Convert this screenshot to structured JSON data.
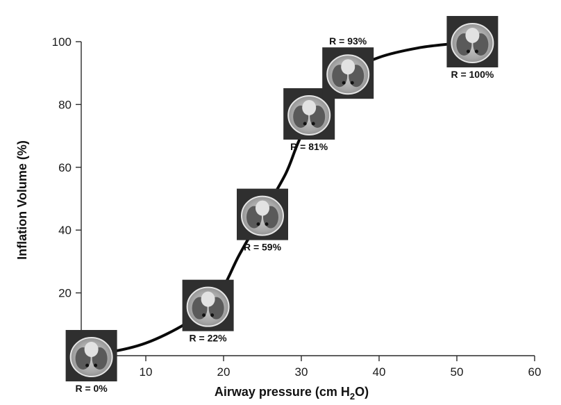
{
  "chart_data": {
    "type": "line",
    "title": "",
    "xlabel_main": "Airway pressure (cm H",
    "xlabel_sub": "2",
    "xlabel_tail": "O)",
    "ylabel": "Inflation Volume (%)",
    "xlim": [
      0,
      60
    ],
    "ylim": [
      0,
      100
    ],
    "x_ticks": [
      10,
      20,
      30,
      40,
      50,
      60
    ],
    "y_ticks": [
      20,
      40,
      60,
      80,
      100
    ],
    "grid": false,
    "series": [
      {
        "x": [
          0,
          5,
          10,
          15,
          18,
          20,
          22,
          25,
          28,
          30,
          33,
          36,
          40,
          45,
          50,
          52
        ],
        "y": [
          0,
          1,
          4,
          10,
          16,
          22,
          32,
          45,
          58,
          70,
          81,
          90,
          95,
          98,
          99.5,
          100
        ]
      }
    ],
    "points": [
      {
        "label": "R = 0%",
        "x": 3,
        "y": 0
      },
      {
        "label": "R = 22%",
        "x": 18,
        "y": 16
      },
      {
        "label": "R = 59%",
        "x": 25,
        "y": 45
      },
      {
        "label": "R = 81%",
        "x": 31,
        "y": 77
      },
      {
        "label": "R = 93%",
        "x": 36,
        "y": 90
      },
      {
        "label": "R = 100%",
        "x": 52,
        "y": 100
      }
    ]
  }
}
